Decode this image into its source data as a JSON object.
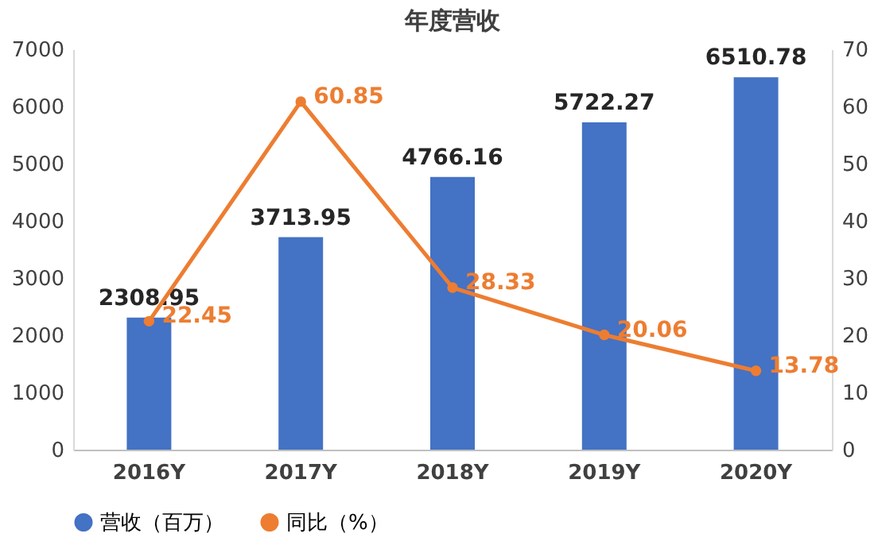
{
  "chart_data": {
    "type": "bar",
    "title": "年度营收",
    "categories": [
      "2016Y",
      "2017Y",
      "2018Y",
      "2019Y",
      "2020Y"
    ],
    "series": [
      {
        "name": "营收（百万）",
        "color": "#4472c4",
        "values": [
          2308.95,
          3713.95,
          4766.16,
          5722.27,
          6510.78
        ]
      },
      {
        "name": "同比（%）",
        "type": "line",
        "color": "#ed7d31",
        "axis": "y2",
        "values": [
          22.45,
          60.85,
          28.33,
          20.06,
          13.78
        ]
      }
    ],
    "ylim": [
      0,
      7000
    ],
    "yticks": [
      0,
      1000,
      2000,
      3000,
      4000,
      5000,
      6000,
      7000
    ],
    "y2lim": [
      0,
      70
    ],
    "y2ticks": [
      0,
      10,
      20,
      30,
      40,
      50,
      60,
      70
    ],
    "data_labels": true,
    "legend": "bottom",
    "grid": false,
    "marker": "circle",
    "line_style": "solid"
  }
}
